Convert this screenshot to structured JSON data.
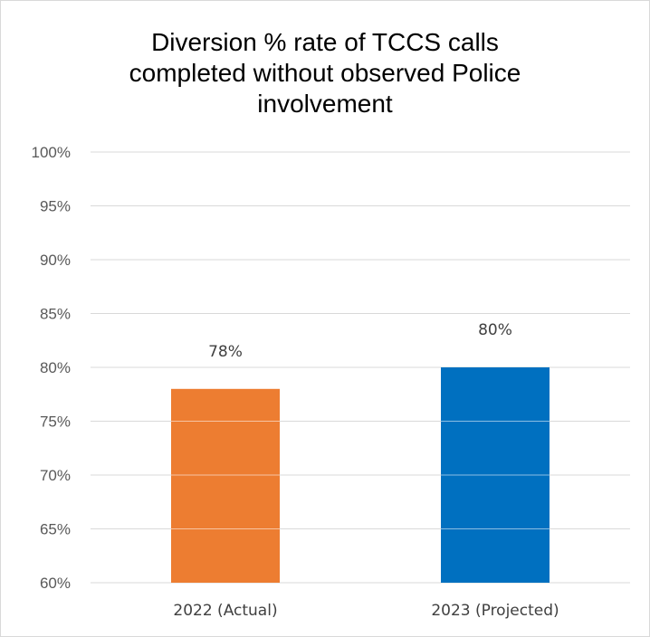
{
  "chart_data": {
    "type": "bar",
    "title": "Diversion % rate of TCCS calls\ncompleted without observed Police\ninvolvement",
    "categories": [
      "2022 (Actual)",
      "2023 (Projected)"
    ],
    "values": [
      78,
      80
    ],
    "data_labels": [
      "78%",
      "80%"
    ],
    "colors": [
      "#ed7d31",
      "#0070c0"
    ],
    "ylim": [
      60,
      100
    ],
    "yticks": [
      60,
      65,
      70,
      75,
      80,
      85,
      90,
      95,
      100
    ],
    "ytick_labels": [
      "60%",
      "65%",
      "70%",
      "75%",
      "80%",
      "85%",
      "90%",
      "95%",
      "100%"
    ],
    "grid": true,
    "legend": "none",
    "gridline_color": "#d9d9d9"
  }
}
